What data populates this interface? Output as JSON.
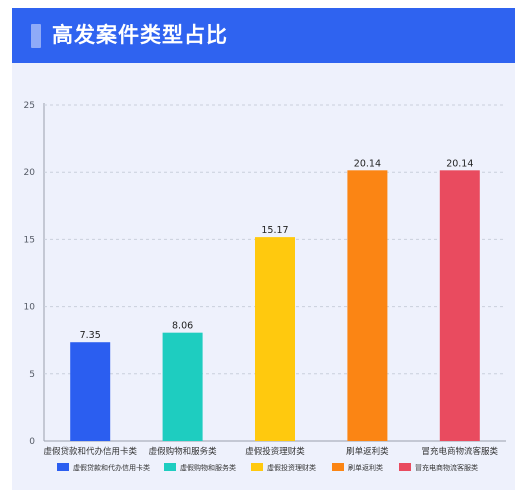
{
  "header": {
    "title": "高发案件类型占比"
  },
  "colors": {
    "header_bg": "#2f63f0",
    "panel_bg": "#eef1fc",
    "series": [
      "#2b5ef0",
      "#1ecdc0",
      "#ffc90e",
      "#fb8514",
      "#e94b5f"
    ]
  },
  "chart_data": {
    "type": "bar",
    "title": "高发案件类型占比",
    "xlabel": "",
    "ylabel": "",
    "categories": [
      "虚假贷款和代办信用卡类",
      "虚假购物和服务类",
      "虚假投资理财类",
      "刷单返利类",
      "冒充电商物流客服类"
    ],
    "values": [
      7.35,
      8.06,
      15.17,
      20.14,
      20.14
    ],
    "value_labels": [
      "7.35",
      "8.06",
      "15.17",
      "20.14",
      "20.14"
    ],
    "ylim": [
      0,
      25
    ],
    "yticks": [
      "0",
      "5",
      "10",
      "15",
      "20",
      "25"
    ],
    "grid": true,
    "legend_position": "bottom",
    "legend": [
      "虚假贷款和代办信用卡类",
      "虚假购物和服务类",
      "虚假投资理财类",
      "刷单返利类",
      "冒充电商物流客服类"
    ]
  }
}
